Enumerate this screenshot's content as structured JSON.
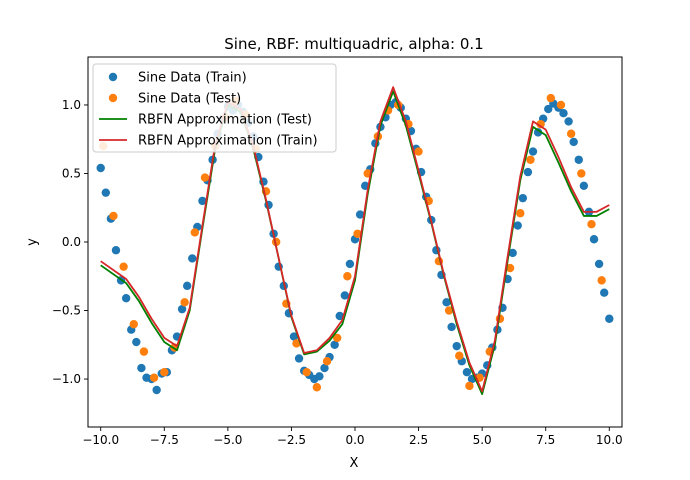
{
  "chart_data": {
    "type": "scatter",
    "title": "Sine, RBF: multiquadric, alpha: 0.1",
    "xlabel": "X",
    "ylabel": "y",
    "xlim": [
      -10.5,
      10.5
    ],
    "ylim": [
      -1.35,
      1.35
    ],
    "xticks": [
      -10.0,
      -7.5,
      -5.0,
      -2.5,
      0.0,
      2.5,
      5.0,
      7.5,
      10.0
    ],
    "xtick_labels": [
      "−10.0",
      "−7.5",
      "−5.0",
      "−2.5",
      "0.0",
      "2.5",
      "5.0",
      "7.5",
      "10.0"
    ],
    "yticks": [
      -1.0,
      -0.5,
      0.0,
      0.5,
      1.0
    ],
    "ytick_labels": [
      "−1.0",
      "−0.5",
      "0.0",
      "0.5",
      "1.0"
    ],
    "grid": false,
    "legend_position": "top-left",
    "series": [
      {
        "name": "Sine Data (Train)",
        "kind": "scatter",
        "color": "#1f77b4",
        "x": [
          -10.0,
          -9.8,
          -9.6,
          -9.4,
          -9.2,
          -9.0,
          -8.8,
          -8.6,
          -8.4,
          -8.2,
          -8.0,
          -7.8,
          -7.6,
          -7.4,
          -7.2,
          -7.0,
          -6.8,
          -6.6,
          -6.4,
          -6.2,
          -6.0,
          -5.8,
          -5.6,
          -5.4,
          -5.2,
          -5.0,
          -4.8,
          -4.6,
          -4.4,
          -4.2,
          -4.0,
          -3.8,
          -3.6,
          -3.4,
          -3.2,
          -3.0,
          -2.8,
          -2.6,
          -2.4,
          -2.2,
          -2.0,
          -1.8,
          -1.6,
          -1.4,
          -1.2,
          -1.0,
          -0.8,
          -0.6,
          -0.4,
          -0.2,
          0.0,
          0.2,
          0.4,
          0.6,
          0.8,
          1.0,
          1.2,
          1.4,
          1.6,
          1.8,
          2.0,
          2.2,
          2.4,
          2.6,
          2.8,
          3.0,
          3.2,
          3.4,
          3.6,
          3.8,
          4.0,
          4.2,
          4.4,
          4.6,
          4.8,
          5.0,
          5.2,
          5.4,
          5.6,
          5.8,
          6.0,
          6.2,
          6.4,
          6.6,
          6.8,
          7.0,
          7.2,
          7.4,
          7.6,
          7.8,
          8.0,
          8.2,
          8.4,
          8.6,
          8.8,
          9.0,
          9.2,
          9.4,
          9.6,
          9.8,
          10.0
        ],
        "y": [
          0.54,
          0.36,
          0.17,
          -0.06,
          -0.28,
          -0.41,
          -0.64,
          -0.73,
          -0.92,
          -0.99,
          -1.0,
          -1.08,
          -0.96,
          -0.95,
          -0.79,
          -0.69,
          -0.49,
          -0.32,
          -0.12,
          0.11,
          0.3,
          0.45,
          0.6,
          0.79,
          0.9,
          0.99,
          0.96,
          1.0,
          0.95,
          0.87,
          0.77,
          0.62,
          0.44,
          0.27,
          0.06,
          -0.18,
          -0.32,
          -0.52,
          -0.69,
          -0.85,
          -0.94,
          -0.97,
          -1.0,
          -0.98,
          -0.92,
          -0.84,
          -0.75,
          -0.54,
          -0.39,
          -0.16,
          0.02,
          0.2,
          0.41,
          0.53,
          0.72,
          0.84,
          0.91,
          1.0,
          1.02,
          0.98,
          0.9,
          0.81,
          0.68,
          0.51,
          0.33,
          0.16,
          -0.06,
          -0.24,
          -0.44,
          -0.62,
          -0.76,
          -0.87,
          -0.95,
          -1.0,
          -0.99,
          -0.96,
          -0.9,
          -0.77,
          -0.64,
          -0.48,
          -0.27,
          -0.08,
          0.12,
          0.32,
          0.51,
          0.66,
          0.8,
          0.9,
          0.97,
          1.01,
          0.98,
          0.94,
          0.88,
          0.73,
          0.6,
          0.41,
          0.22,
          0.02,
          -0.16,
          -0.37,
          -0.56
        ]
      },
      {
        "name": "Sine Data (Test)",
        "kind": "scatter",
        "color": "#ff7f0e",
        "x": [
          -9.9,
          -9.5,
          -9.1,
          -8.7,
          -8.3,
          -7.9,
          -7.5,
          -7.1,
          -6.7,
          -6.3,
          -5.9,
          -5.5,
          -5.1,
          -4.7,
          -4.3,
          -3.9,
          -3.5,
          -3.1,
          -2.7,
          -2.3,
          -1.9,
          -1.5,
          -1.1,
          -0.7,
          -0.3,
          0.1,
          0.5,
          0.9,
          1.3,
          1.7,
          2.1,
          2.5,
          2.9,
          3.3,
          3.7,
          4.1,
          4.5,
          4.9,
          5.3,
          5.7,
          6.1,
          6.5,
          6.9,
          7.3,
          7.7,
          8.1,
          8.5,
          8.9,
          9.3,
          9.7
        ],
        "y": [
          0.7,
          0.19,
          -0.18,
          -0.6,
          -0.8,
          -0.99,
          -0.95,
          -0.77,
          -0.44,
          0.07,
          0.47,
          0.7,
          0.91,
          1.03,
          0.93,
          0.68,
          0.37,
          0.0,
          -0.45,
          -0.74,
          -0.95,
          -1.06,
          -0.87,
          -0.7,
          -0.25,
          0.06,
          0.5,
          0.77,
          0.96,
          1.0,
          0.86,
          0.66,
          0.3,
          -0.14,
          -0.5,
          -0.83,
          -1.05,
          -0.99,
          -0.8,
          -0.56,
          -0.19,
          0.21,
          0.6,
          0.86,
          1.05,
          1.0,
          0.79,
          0.5,
          0.13,
          -0.28
        ]
      },
      {
        "name": "RBFN Approximation (Test)",
        "kind": "line",
        "color": "#008000",
        "x": [
          -10.0,
          -9.0,
          -8.5,
          -8.0,
          -7.5,
          -7.0,
          -6.5,
          -6.0,
          -5.5,
          -5.0,
          -4.5,
          -4.0,
          -3.5,
          -3.0,
          -2.5,
          -2.0,
          -1.5,
          -1.0,
          -0.5,
          0.0,
          0.5,
          1.0,
          1.5,
          2.0,
          2.5,
          3.0,
          3.5,
          4.0,
          4.5,
          5.0,
          5.5,
          6.0,
          6.5,
          7.0,
          7.5,
          8.0,
          8.5,
          9.0,
          9.5,
          10.0
        ],
        "y": [
          -0.17,
          -0.3,
          -0.43,
          -0.59,
          -0.73,
          -0.79,
          -0.5,
          0.1,
          0.68,
          1.0,
          0.95,
          0.68,
          0.3,
          -0.12,
          -0.55,
          -0.82,
          -0.8,
          -0.72,
          -0.6,
          -0.28,
          0.35,
          0.85,
          1.1,
          0.85,
          0.5,
          0.14,
          -0.25,
          -0.6,
          -0.9,
          -1.11,
          -0.75,
          -0.14,
          0.45,
          0.84,
          0.78,
          0.58,
          0.37,
          0.19,
          0.19,
          0.24
        ]
      },
      {
        "name": "RBFN Approximation (Train)",
        "kind": "line",
        "color": "#d62728",
        "x": [
          -10.0,
          -9.0,
          -8.5,
          -8.0,
          -7.5,
          -7.0,
          -6.5,
          -6.0,
          -5.5,
          -5.0,
          -4.5,
          -4.0,
          -3.5,
          -3.0,
          -2.5,
          -2.0,
          -1.5,
          -1.0,
          -0.5,
          0.0,
          0.5,
          1.0,
          1.5,
          2.0,
          2.5,
          3.0,
          3.5,
          4.0,
          4.5,
          5.0,
          5.5,
          6.0,
          6.5,
          7.0,
          7.5,
          8.0,
          8.5,
          9.0,
          9.5,
          10.0
        ],
        "y": [
          -0.14,
          -0.27,
          -0.4,
          -0.56,
          -0.7,
          -0.76,
          -0.48,
          0.12,
          0.71,
          1.02,
          0.97,
          0.7,
          0.31,
          -0.12,
          -0.54,
          -0.81,
          -0.79,
          -0.7,
          -0.57,
          -0.25,
          0.38,
          0.88,
          1.13,
          0.88,
          0.52,
          0.15,
          -0.24,
          -0.58,
          -0.88,
          -1.09,
          -0.72,
          -0.11,
          0.48,
          0.88,
          0.82,
          0.62,
          0.4,
          0.22,
          0.22,
          0.27
        ]
      }
    ]
  }
}
